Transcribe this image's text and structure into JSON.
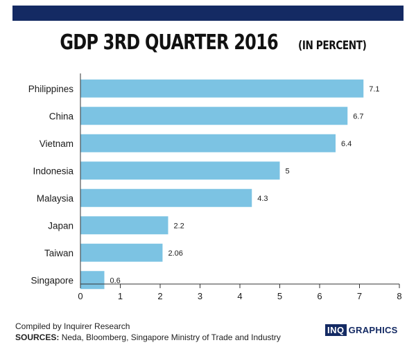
{
  "title": {
    "main": "GDP 3RD QUARTER 2016",
    "sub": "(IN PERCENT)"
  },
  "colors": {
    "bar": "#7cc3e3",
    "band": "#142a63",
    "axis": "#333333"
  },
  "footer": {
    "compiled": "Compiled by Inquirer Research",
    "sources_label": "SOURCES:",
    "sources_text": "Neda, Bloomberg, Singapore Ministry of Trade and Industry"
  },
  "brand": {
    "box": "INQ",
    "text": "GRAPHICS"
  },
  "chart_data": {
    "type": "bar",
    "orientation": "horizontal",
    "title": "GDP 3RD QUARTER 2016",
    "subtitle": "(IN PERCENT)",
    "categories": [
      "Philippines",
      "China",
      "Vietnam",
      "Indonesia",
      "Malaysia",
      "Japan",
      "Taiwan",
      "Singapore"
    ],
    "values": [
      7.1,
      6.7,
      6.4,
      5,
      4.3,
      2.2,
      2.06,
      0.6
    ],
    "value_labels": [
      "7.1",
      "6.7",
      "6.4",
      "5",
      "4.3",
      "2.2",
      "2.06",
      "0.6"
    ],
    "xlim": [
      0,
      8
    ],
    "xticks": [
      "0",
      "1",
      "2",
      "3",
      "4",
      "5",
      "6",
      "7",
      "8"
    ],
    "grid": false,
    "legend": "none"
  }
}
